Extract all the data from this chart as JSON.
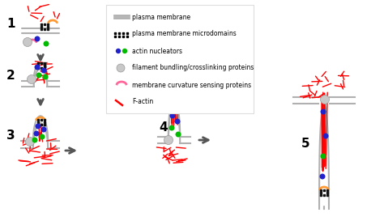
{
  "background": "#ffffff",
  "membrane_color": "#b0b0b0",
  "actin_color": "#ff0000",
  "blue_dot_color": "#2222cc",
  "green_dot_color": "#00bb00",
  "gray_dot_color": "#c8c8c8",
  "orange_curve_color": "#ff9933",
  "pink_curve_color": "#ff6699",
  "black_sq_color": "#111111",
  "arrow_color": "#555555",
  "legend_box_color": "#dddddd",
  "step_labels": [
    "1",
    "2",
    "3",
    "4",
    "5"
  ]
}
